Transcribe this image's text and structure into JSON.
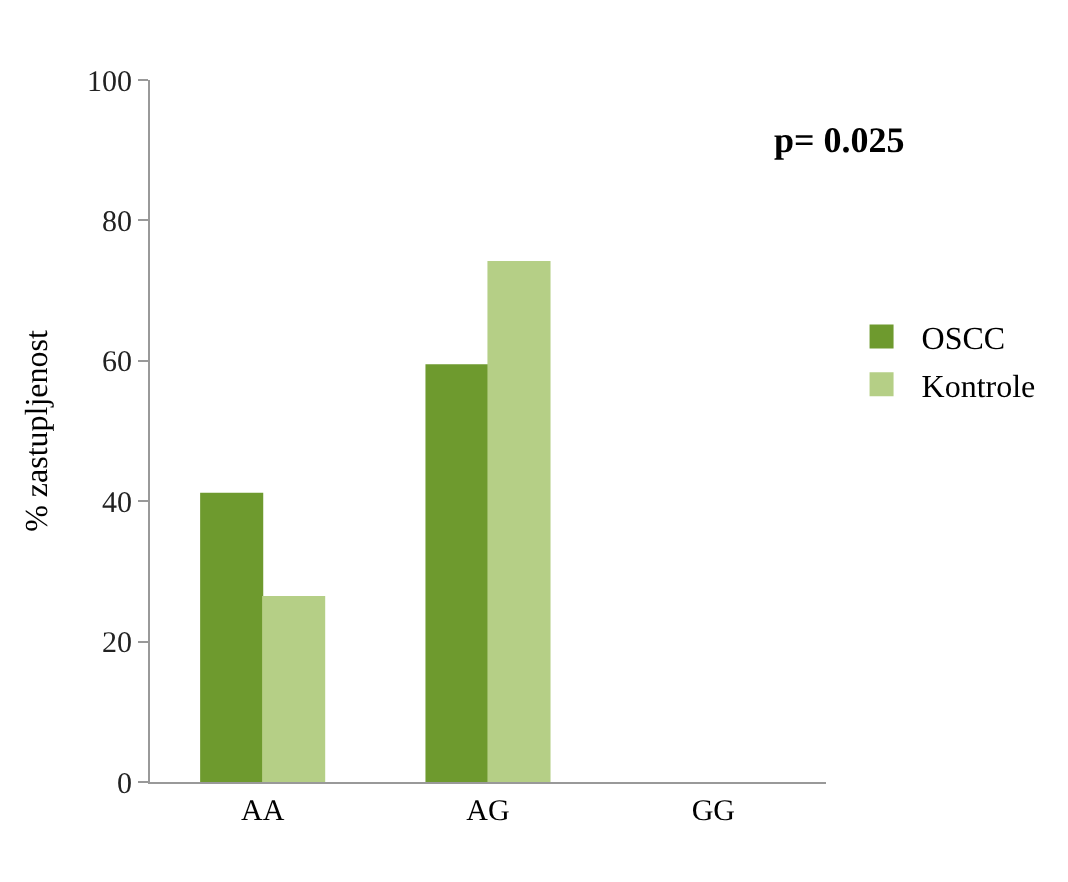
{
  "chart_data": {
    "type": "bar",
    "ylabel": "% zastupljenost",
    "categories": [
      "AA",
      "AG",
      "GG"
    ],
    "series": [
      {
        "name": "OSCC",
        "color": "#6e9a2e",
        "values": [
          41.2,
          59.5,
          0
        ]
      },
      {
        "name": "Kontrole",
        "color": "#b5cf86",
        "values": [
          26.5,
          74.2,
          0
        ]
      }
    ],
    "ylim": [
      0,
      100
    ],
    "yticks": [
      0,
      20,
      40,
      60,
      80,
      100
    ],
    "grid": false,
    "legend": "right",
    "annotations": [
      "p= 0.025"
    ]
  }
}
